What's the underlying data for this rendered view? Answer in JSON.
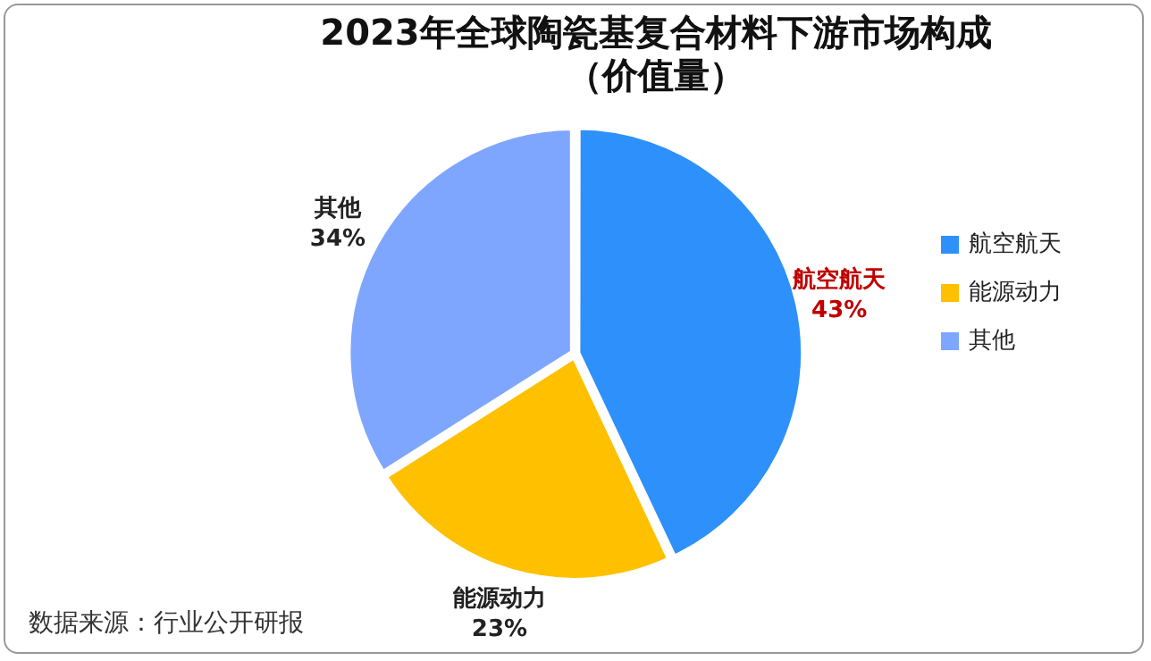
{
  "chart_data": {
    "type": "pie",
    "title": "2023年全球陶瓷基复合材料下游市场构成",
    "subtitle": "（价值量）",
    "categories": [
      "航空航天",
      "能源动力",
      "其他"
    ],
    "values": [
      43,
      23,
      34
    ],
    "value_labels": [
      "43%",
      "23%",
      "34%"
    ],
    "colors": [
      "#2e90fa",
      "#ffc000",
      "#7ea6ff"
    ],
    "legend": "right",
    "annotations": [
      "数据来源：行业公开研报"
    ]
  }
}
